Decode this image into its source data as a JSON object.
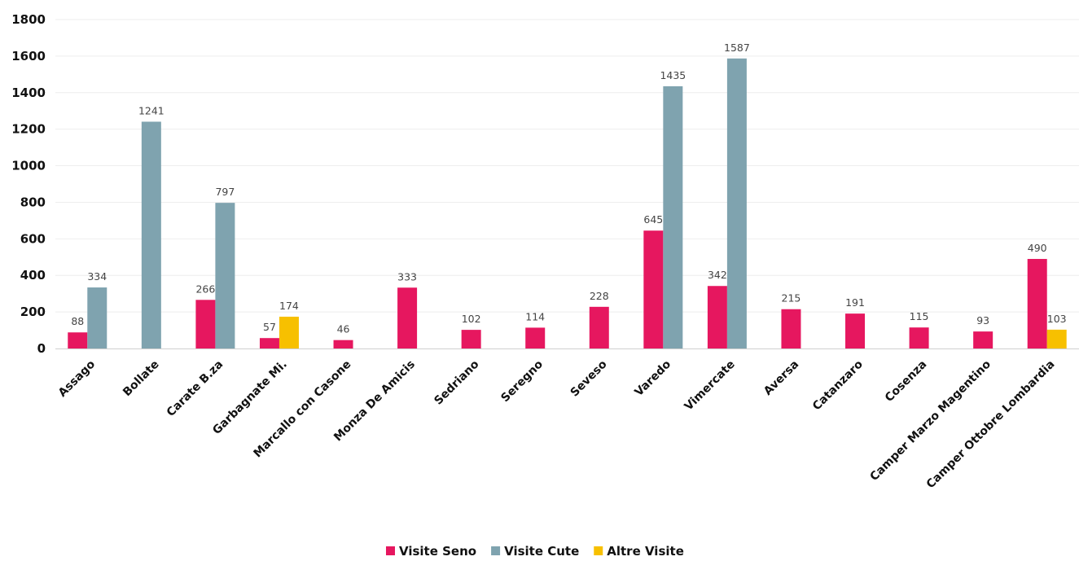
{
  "chart_data": {
    "type": "bar",
    "categories": [
      "Assago",
      "Bollate",
      "Carate B.za",
      "Garbagnate Mi.",
      "Marcallo con Casone",
      "Monza De Amicis",
      "Sedriano",
      "Seregno",
      "Seveso",
      "Varedo",
      "Vimercate",
      "Aversa",
      "Catanzaro",
      "Cosenza",
      "Camper Marzo Magentino",
      "Camper Ottobre Lombardia"
    ],
    "series": [
      {
        "name": "Visite Seno",
        "color": "#E6175F",
        "values": [
          88,
          null,
          266,
          57,
          46,
          333,
          102,
          114,
          228,
          645,
          342,
          215,
          191,
          115,
          93,
          490
        ]
      },
      {
        "name": "Visite Cute",
        "color": "#7FA3AF",
        "values": [
          334,
          1241,
          797,
          null,
          null,
          null,
          null,
          null,
          null,
          1435,
          1587,
          null,
          null,
          null,
          null,
          null
        ]
      },
      {
        "name": "Altre Visite",
        "color": "#F7C000",
        "values": [
          null,
          null,
          null,
          174,
          null,
          null,
          null,
          null,
          null,
          null,
          null,
          null,
          null,
          null,
          null,
          103
        ]
      }
    ],
    "ylim": [
      0,
      1800
    ],
    "yticks": [
      0,
      200,
      400,
      600,
      800,
      1000,
      1200,
      1400,
      1600,
      1800
    ],
    "grid": true,
    "legend_position": "bottom-center",
    "title": "",
    "xlabel": "",
    "ylabel": ""
  }
}
